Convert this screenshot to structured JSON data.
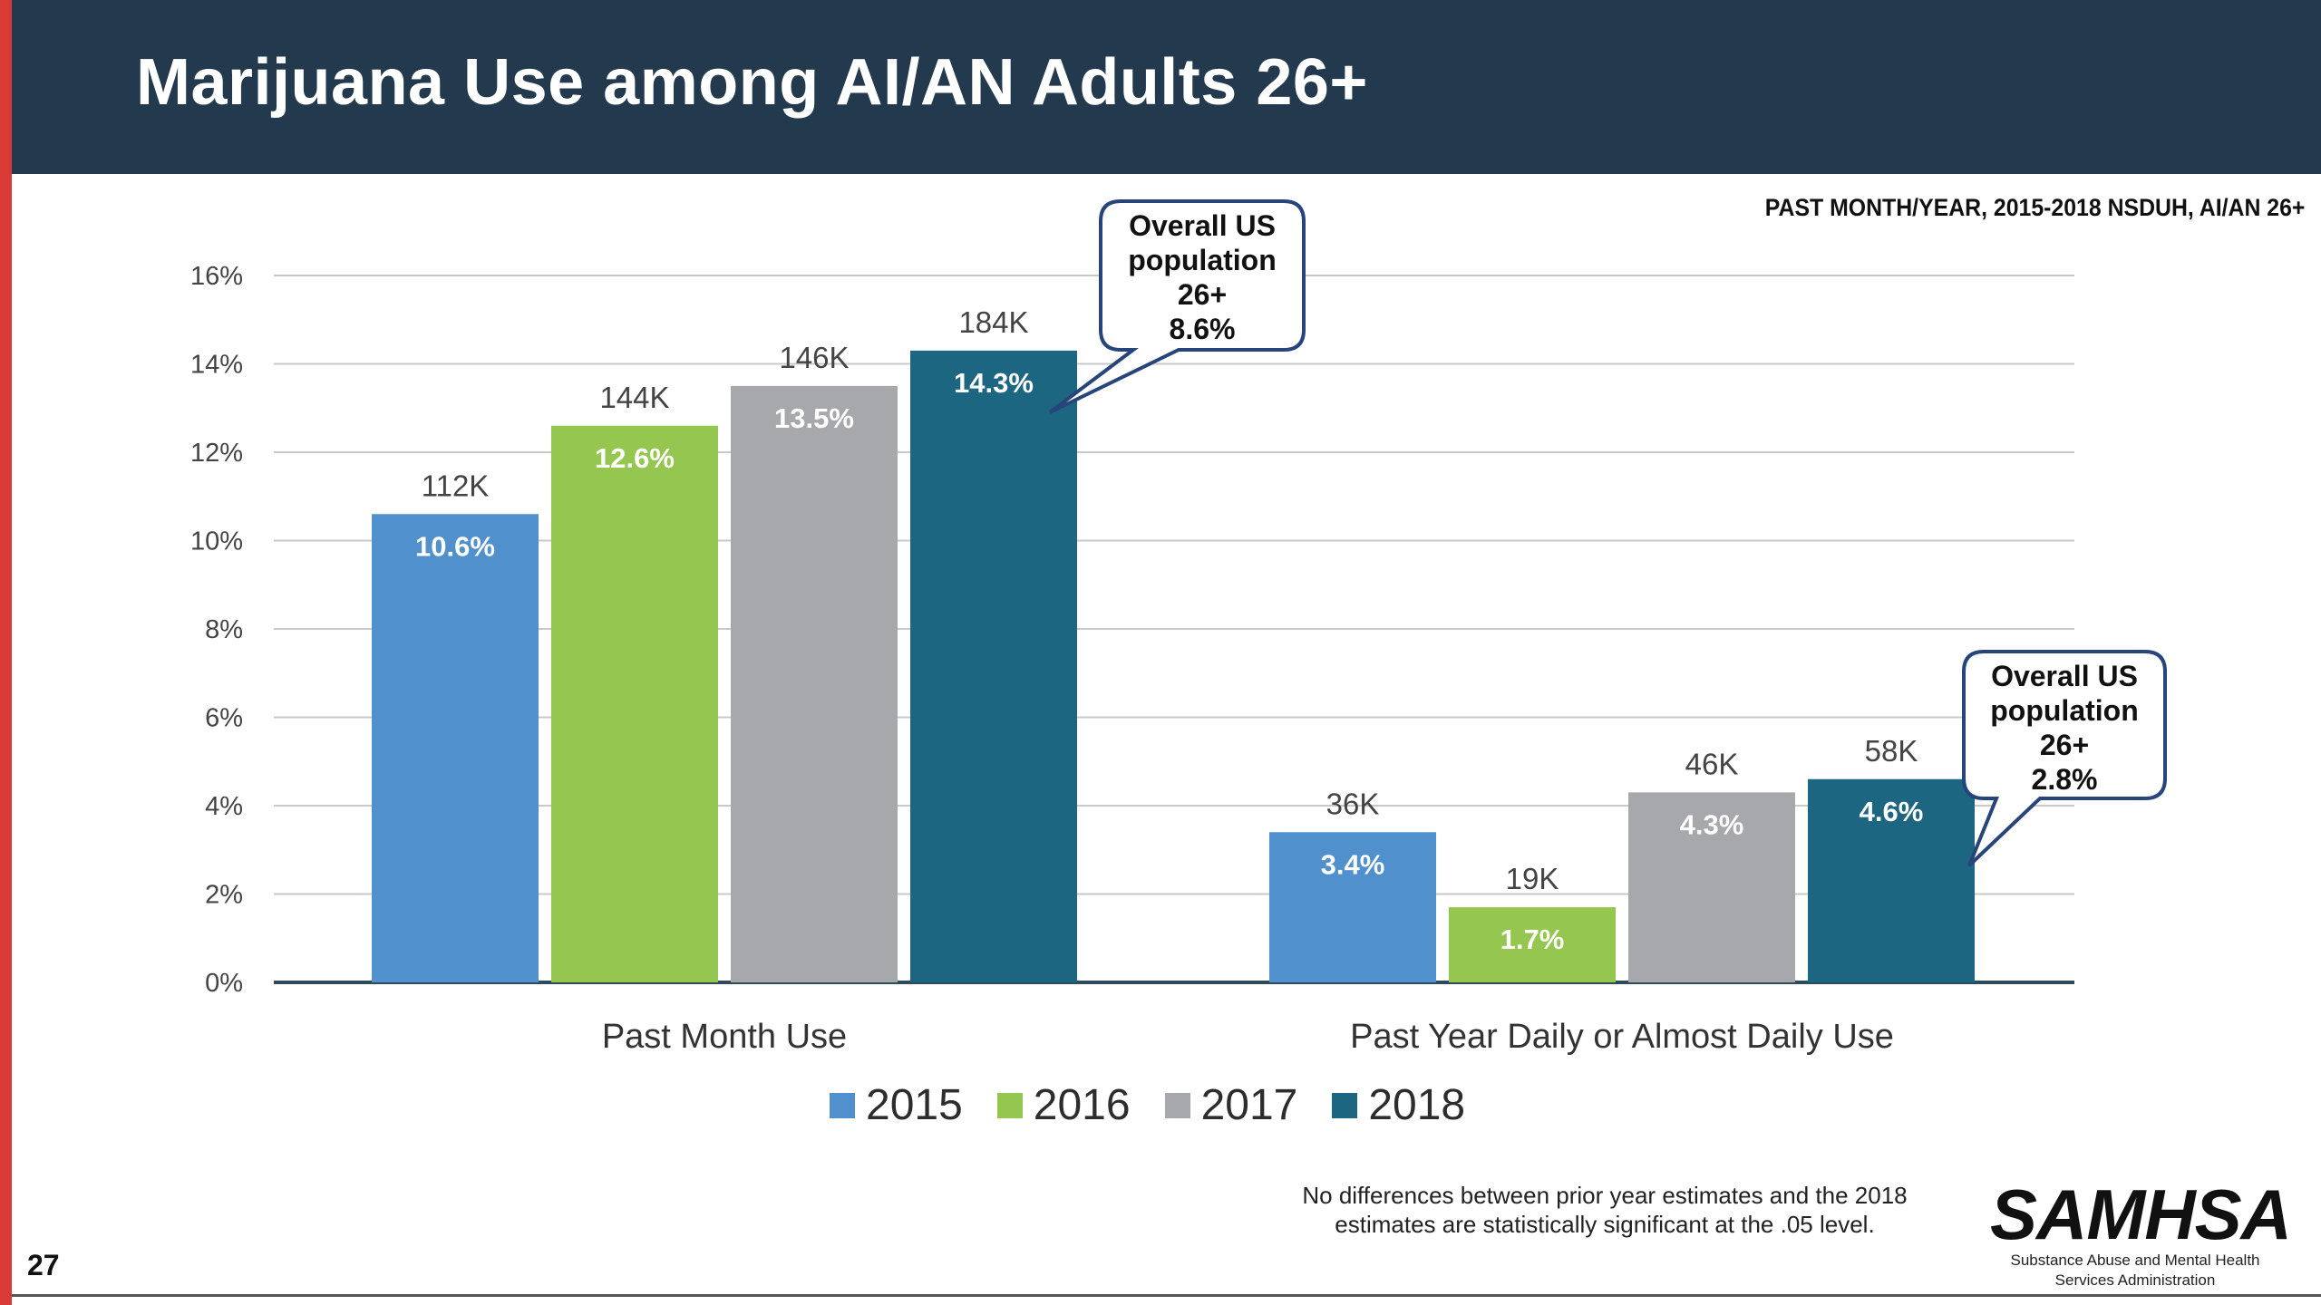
{
  "slide": {
    "title": "Marijuana Use among AI/AN Adults 26+",
    "source": "PAST MONTH/YEAR, 2015-2018  NSDUH, AI/AN 26+",
    "footnote": "No differences between prior year estimates and the 2018 estimates are statistically significant at the .05 level.",
    "page_number": "27",
    "logo": {
      "word": "SAMHSA",
      "line1": "Substance Abuse and Mental Health",
      "line2": "Services Administration"
    },
    "accent_color": "#d93a35",
    "header_color": "#23394d"
  },
  "chart_data": {
    "type": "bar",
    "categories": [
      "Past Month Use",
      "Past Year Daily or Almost Daily Use"
    ],
    "y_ticks": [
      "0%",
      "2%",
      "4%",
      "6%",
      "8%",
      "10%",
      "12%",
      "14%",
      "16%"
    ],
    "ylim": [
      0,
      16
    ],
    "grid": true,
    "legend_position": "bottom",
    "series": [
      {
        "name": "2015",
        "color": "#4f90cd",
        "values": [
          10.6,
          3.4
        ],
        "value_labels": [
          "10.6%",
          "3.4%"
        ],
        "count_labels": [
          "112K",
          "36K"
        ]
      },
      {
        "name": "2016",
        "color": "#95c64f",
        "values": [
          12.6,
          1.7
        ],
        "value_labels": [
          "12.6%",
          "1.7%"
        ],
        "count_labels": [
          "144K",
          "19K"
        ]
      },
      {
        "name": "2017",
        "color": "#a6a8ab",
        "values": [
          13.5,
          4.3
        ],
        "value_labels": [
          "13.5%",
          "4.3%"
        ],
        "count_labels": [
          "146K",
          "46K"
        ]
      },
      {
        "name": "2018",
        "color": "#1c6682",
        "values": [
          14.3,
          4.6
        ],
        "value_labels": [
          "14.3%",
          "4.6%"
        ],
        "count_labels": [
          "184K",
          "58K"
        ]
      }
    ],
    "annotations": [
      {
        "category": "Past Month Use",
        "lines": [
          "Overall US",
          "population",
          "26+",
          "8.6%"
        ]
      },
      {
        "category": "Past Year Daily or Almost Daily Use",
        "lines": [
          "Overall US",
          "population",
          "26+",
          "2.8%"
        ]
      }
    ]
  }
}
